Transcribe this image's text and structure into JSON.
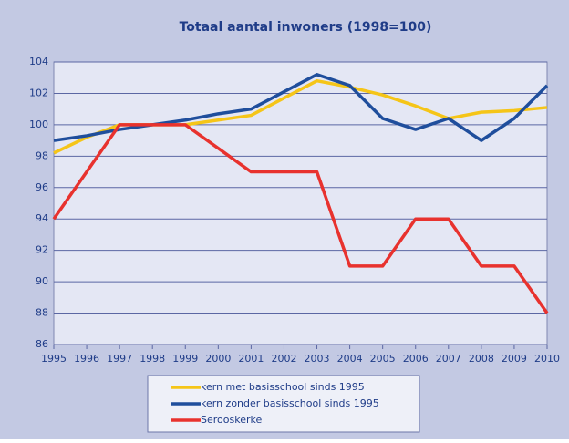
{
  "chart_data": {
    "type": "line",
    "title": "Totaal aantal inwoners (1998=100)",
    "categories": [
      "1995",
      "1996",
      "1997",
      "1998",
      "1999",
      "2000",
      "2001",
      "2002",
      "2003",
      "2004",
      "2005",
      "2006",
      "2007",
      "2008",
      "2009",
      "2010"
    ],
    "series": [
      {
        "name": "kern met basisschool sinds 1995",
        "color": "#f5c518",
        "values": [
          98.2,
          99.2,
          100.0,
          100.0,
          100.0,
          100.3,
          100.6,
          101.7,
          102.8,
          102.4,
          101.9,
          101.2,
          100.4,
          100.8,
          100.9,
          101.1
        ]
      },
      {
        "name": "kern zonder basisschool sinds 1995",
        "color": "#1f4e9c",
        "values": [
          99.0,
          99.3,
          99.7,
          100.0,
          100.3,
          100.7,
          101.0,
          102.1,
          103.2,
          102.5,
          100.4,
          99.7,
          100.4,
          99.0,
          100.4,
          102.5
        ]
      },
      {
        "name": "Serooskerke",
        "color": "#e8322e",
        "values": [
          94.0,
          97.0,
          100.0,
          100.0,
          100.0,
          98.5,
          97.0,
          97.0,
          97.0,
          91.0,
          91.0,
          94.0,
          94.0,
          91.0,
          91.0,
          88.0
        ]
      }
    ],
    "ylim": [
      86,
      104
    ],
    "yticks": [
      86,
      88,
      90,
      92,
      94,
      96,
      98,
      100,
      102,
      104
    ],
    "grid": true
  }
}
